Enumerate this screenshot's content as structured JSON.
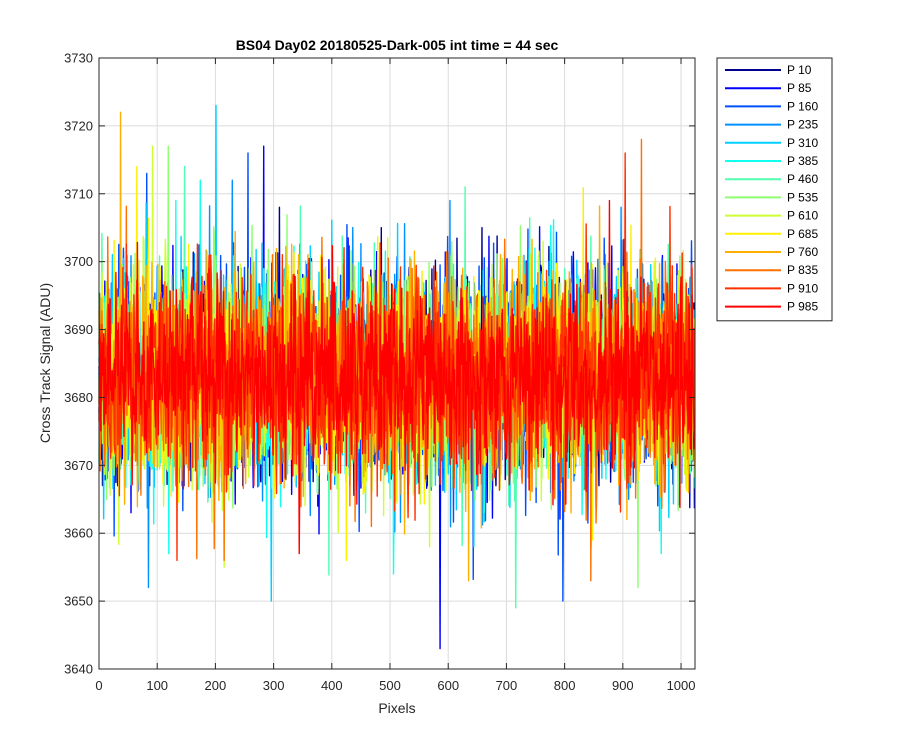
{
  "chart_data": {
    "type": "line",
    "title": "BS04 Day02 20180525-Dark-005 int time = 44 sec",
    "xlabel": "Pixels",
    "ylabel": "Cross Track Signal (ADU)",
    "xlim": [
      0,
      1024
    ],
    "ylim": [
      3640,
      3730
    ],
    "x_ticks": [
      0,
      100,
      200,
      300,
      400,
      500,
      600,
      700,
      800,
      900,
      1000
    ],
    "y_ticks": [
      3640,
      3650,
      3660,
      3670,
      3680,
      3690,
      3700,
      3710,
      3720,
      3730
    ],
    "grid": true,
    "legend_position": "outside-top-right",
    "n_points": 1024,
    "series": [
      {
        "name": "P 10",
        "color": "#00008f",
        "mean": 3683,
        "spread": 7.5,
        "max": 3708,
        "min": 3664
      },
      {
        "name": "P 85",
        "color": "#0000ff",
        "mean": 3683,
        "spread": 7.5,
        "max": 3717,
        "min": 3643
      },
      {
        "name": "P 160",
        "color": "#0050ff",
        "mean": 3683,
        "spread": 7.5,
        "max": 3716,
        "min": 3650
      },
      {
        "name": "P 235",
        "color": "#0090ff",
        "mean": 3683,
        "spread": 7.5,
        "max": 3712,
        "min": 3652
      },
      {
        "name": "P 310",
        "color": "#00cfff",
        "mean": 3683,
        "spread": 7.5,
        "max": 3723,
        "min": 3650
      },
      {
        "name": "P 385",
        "color": "#10ffef",
        "mean": 3683,
        "spread": 7.5,
        "max": 3712,
        "min": 3654
      },
      {
        "name": "P 460",
        "color": "#50ffaf",
        "mean": 3683,
        "spread": 7.5,
        "max": 3714,
        "min": 3649
      },
      {
        "name": "P 535",
        "color": "#8fff70",
        "mean": 3683,
        "spread": 7.5,
        "max": 3717,
        "min": 3652
      },
      {
        "name": "P 610",
        "color": "#cfff30",
        "mean": 3683,
        "spread": 7.5,
        "max": 3717,
        "min": 3655
      },
      {
        "name": "P 685",
        "color": "#ffef00",
        "mean": 3683,
        "spread": 7.5,
        "max": 3714,
        "min": 3656
      },
      {
        "name": "P 760",
        "color": "#ffaf00",
        "mean": 3683,
        "spread": 7.5,
        "max": 3722,
        "min": 3653
      },
      {
        "name": "P 835",
        "color": "#ff7000",
        "mean": 3683,
        "spread": 7.5,
        "max": 3718,
        "min": 3653
      },
      {
        "name": "P 910",
        "color": "#ff3000",
        "mean": 3683,
        "spread": 7.5,
        "max": 3716,
        "min": 3656
      },
      {
        "name": "P 985",
        "color": "#ff0000",
        "mean": 3683,
        "spread": 6.5,
        "max": 3709,
        "min": 3657
      }
    ]
  }
}
